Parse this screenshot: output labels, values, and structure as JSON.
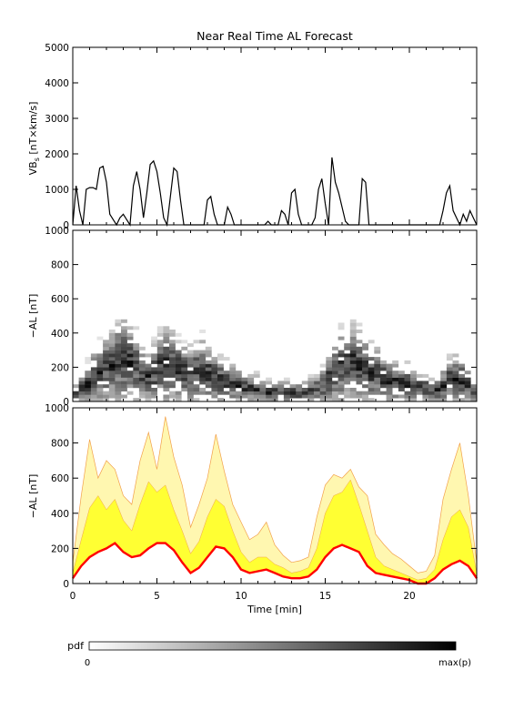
{
  "title": "Near Real Time AL Forecast",
  "colors": {
    "axis": "#000000",
    "fill_outer": "#fff7b0",
    "fill_inner": "#ffff33",
    "edge": "#f2a04a",
    "median": "#ff0000"
  },
  "chart_data": [
    {
      "type": "line",
      "panel": "top",
      "ylabel": "VB",
      "ylabel_sub": "s",
      "ylabel_unit": " [nT×km/s]",
      "ylim": [
        0,
        5000
      ],
      "yticks": [
        0,
        1000,
        2000,
        3000,
        4000,
        5000
      ],
      "xlim": [
        0,
        24
      ],
      "x": [
        0,
        0.2,
        0.4,
        0.6,
        0.8,
        1.0,
        1.2,
        1.4,
        1.6,
        1.8,
        2.0,
        2.2,
        2.4,
        2.6,
        2.8,
        3.0,
        3.2,
        3.4,
        3.6,
        3.8,
        4.0,
        4.2,
        4.4,
        4.6,
        4.8,
        5.0,
        5.2,
        5.4,
        5.6,
        5.8,
        6.0,
        6.2,
        6.4,
        6.6,
        6.8,
        7.0,
        7.2,
        7.4,
        7.6,
        7.8,
        8.0,
        8.2,
        8.4,
        8.6,
        8.8,
        9.0,
        9.2,
        9.4,
        9.6,
        9.8,
        10.0,
        10.2,
        10.4,
        10.6,
        10.8,
        11.0,
        11.2,
        11.4,
        11.6,
        11.8,
        12.0,
        12.2,
        12.4,
        12.6,
        12.8,
        13.0,
        13.2,
        13.4,
        13.6,
        13.8,
        14.0,
        14.2,
        14.4,
        14.6,
        14.8,
        15.0,
        15.2,
        15.4,
        15.6,
        15.8,
        16.0,
        16.2,
        16.4,
        16.6,
        16.8,
        17.0,
        17.2,
        17.4,
        17.6,
        17.8,
        18.0,
        18.2,
        18.4,
        18.6,
        18.8,
        19.0,
        19.2,
        19.4,
        19.6,
        19.8,
        20.0,
        20.2,
        20.4,
        20.6,
        20.8,
        21.0,
        21.2,
        21.4,
        21.6,
        21.8,
        22.0,
        22.2,
        22.4,
        22.6,
        22.8,
        23.0,
        23.2,
        23.4,
        23.6,
        23.8,
        24.0
      ],
      "y": [
        0,
        1100,
        400,
        0,
        1000,
        1050,
        1050,
        1000,
        1600,
        1650,
        1200,
        300,
        150,
        0,
        200,
        300,
        150,
        0,
        1100,
        1500,
        1000,
        200,
        900,
        1700,
        1800,
        1500,
        900,
        200,
        0,
        800,
        1600,
        1500,
        700,
        0,
        0,
        0,
        0,
        0,
        0,
        0,
        700,
        800,
        300,
        0,
        0,
        0,
        500,
        300,
        0,
        0,
        0,
        0,
        0,
        0,
        0,
        0,
        0,
        0,
        100,
        0,
        0,
        0,
        400,
        300,
        0,
        900,
        1000,
        300,
        0,
        0,
        0,
        0,
        200,
        1000,
        1300,
        600,
        0,
        1900,
        1200,
        900,
        500,
        100,
        0,
        0,
        0,
        0,
        1300,
        1200,
        0,
        0,
        0,
        0,
        0,
        0,
        0,
        0,
        0,
        0,
        0,
        0,
        0,
        0,
        0,
        0,
        0,
        0,
        0,
        0,
        0,
        0,
        400,
        900,
        1100,
        400,
        200,
        0,
        300,
        100,
        400,
        200,
        0
      ]
    },
    {
      "type": "heatmap",
      "panel": "middle",
      "ylabel": "−AL [nT]",
      "ylim": [
        0,
        1000
      ],
      "yticks": [
        0,
        200,
        400,
        600,
        800,
        1000
      ],
      "xlim": [
        0,
        24
      ],
      "center_curve_y": [
        30,
        60,
        90,
        130,
        150,
        180,
        200,
        220,
        230,
        210,
        180,
        140,
        130,
        150,
        180,
        200,
        190,
        170,
        150,
        140,
        160,
        170,
        150,
        130,
        110,
        100,
        90,
        80,
        70,
        60,
        60,
        50,
        45,
        40,
        40,
        40,
        40,
        40,
        45,
        50,
        60,
        80,
        120,
        160,
        190,
        200,
        210,
        190,
        170,
        150,
        140,
        120,
        110,
        100,
        90,
        90,
        80,
        70,
        60,
        50,
        60,
        80,
        110,
        120,
        110,
        80,
        40
      ],
      "center_curve_x_step_min": 0.36
    },
    {
      "type": "area",
      "panel": "bottom",
      "ylabel": "−AL [nT]",
      "xlabel": "Time [min]",
      "ylim": [
        0,
        1000
      ],
      "yticks": [
        0,
        200,
        400,
        600,
        800,
        1000
      ],
      "xlim": [
        0,
        24
      ],
      "xticks": [
        0,
        5,
        10,
        15,
        20
      ],
      "x": [
        0,
        0.5,
        1.0,
        1.5,
        2.0,
        2.5,
        3.0,
        3.5,
        4.0,
        4.5,
        5.0,
        5.5,
        6.0,
        6.5,
        7.0,
        7.5,
        8.0,
        8.5,
        9.0,
        9.5,
        10.0,
        10.5,
        11.0,
        11.5,
        12.0,
        12.5,
        13.0,
        13.5,
        14.0,
        14.5,
        15.0,
        15.5,
        16.0,
        16.5,
        17.0,
        17.5,
        18.0,
        18.5,
        19.0,
        19.5,
        20.0,
        20.5,
        21.0,
        21.5,
        22.0,
        22.5,
        23.0,
        23.5,
        24.0
      ],
      "median": [
        30,
        100,
        150,
        180,
        200,
        230,
        180,
        150,
        160,
        200,
        230,
        230,
        190,
        120,
        60,
        90,
        150,
        210,
        200,
        150,
        80,
        60,
        70,
        80,
        60,
        40,
        30,
        30,
        40,
        80,
        150,
        200,
        220,
        200,
        180,
        100,
        60,
        50,
        40,
        30,
        20,
        0,
        0,
        30,
        80,
        110,
        130,
        100,
        30
      ],
      "inner_upper": [
        60,
        250,
        430,
        500,
        420,
        480,
        360,
        300,
        450,
        580,
        520,
        560,
        420,
        300,
        170,
        240,
        380,
        480,
        440,
        300,
        180,
        120,
        150,
        150,
        110,
        90,
        60,
        70,
        90,
        200,
        400,
        500,
        520,
        590,
        450,
        300,
        150,
        100,
        80,
        60,
        40,
        20,
        30,
        80,
        250,
        380,
        420,
        320,
        60
      ],
      "outer_upper": [
        120,
        500,
        820,
        600,
        700,
        650,
        500,
        450,
        700,
        860,
        650,
        950,
        720,
        560,
        320,
        450,
        600,
        850,
        640,
        450,
        350,
        250,
        280,
        350,
        220,
        160,
        120,
        130,
        150,
        380,
        560,
        620,
        600,
        650,
        550,
        500,
        280,
        220,
        170,
        140,
        100,
        60,
        70,
        160,
        480,
        650,
        800,
        500,
        120
      ]
    }
  ],
  "colorbar": {
    "label": "pdf",
    "min_label": "0",
    "max_label": "max(p)"
  }
}
